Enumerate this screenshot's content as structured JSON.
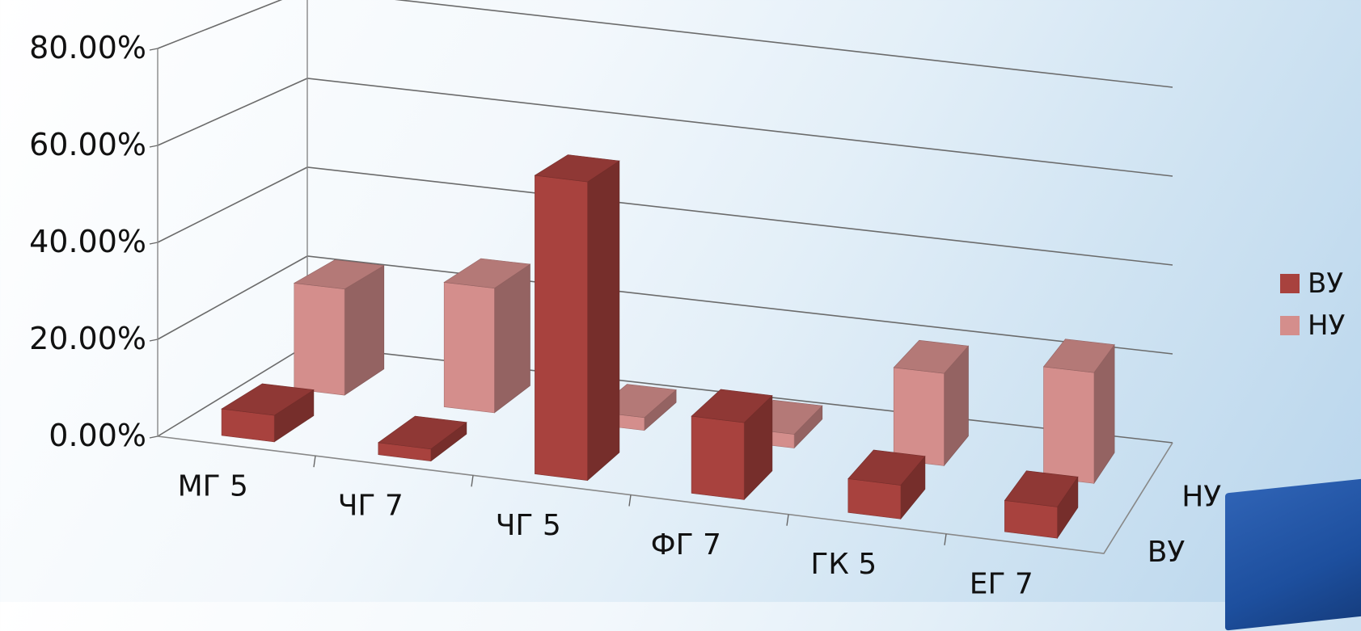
{
  "chart_data": {
    "type": "bar",
    "categories": [
      "МГ 5",
      "ЧГ 7",
      "ЧГ 5",
      "ФГ 7",
      "ГК 5",
      "ЕГ 7"
    ],
    "series": [
      {
        "name": "ВУ",
        "values": [
          5.5,
          2.5,
          62.0,
          16.0,
          7.0,
          6.5
        ],
        "color": "#a8423e"
      },
      {
        "name": "НУ",
        "values": [
          23.0,
          27.0,
          2.8,
          3.0,
          20.0,
          24.0
        ],
        "color": "#d48e8c"
      }
    ],
    "yticks": [
      "0.00%",
      "20.00%",
      "40.00%",
      "60.00%",
      "80.00%"
    ],
    "depth_labels": [
      "ВУ",
      "НУ"
    ],
    "ylim": [
      0,
      80
    ],
    "grid": true,
    "legend_position": "right",
    "projection": "3d"
  }
}
